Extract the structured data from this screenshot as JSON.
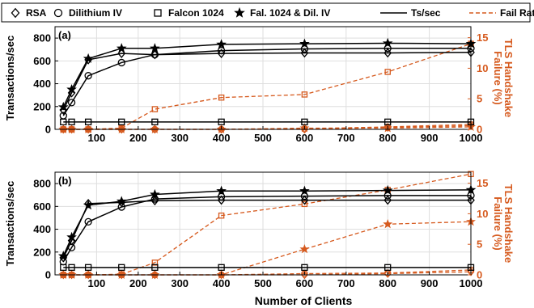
{
  "legend": {
    "entries": [
      {
        "label": "RSA",
        "marker": "diamond"
      },
      {
        "label": "Dilithium IV",
        "marker": "circle"
      },
      {
        "label": "Falcon 1024",
        "marker": "square"
      },
      {
        "label": "Fal. 1024 & Dil. IV",
        "marker": "star"
      },
      {
        "label": "Ts/sec",
        "line": "solid"
      },
      {
        "label": "Fail Rate",
        "line": "dashed"
      }
    ]
  },
  "colors": {
    "throughput": "#000000",
    "failure": "#d65a1e"
  },
  "chart_data": [
    {
      "type": "line",
      "panel_label": "(a)",
      "xlabel": "Number of Clients",
      "ylabel": "Transactions/sec",
      "ylabel_right": "TLS Handshake Failure (%)",
      "x": [
        20,
        40,
        80,
        160,
        240,
        400,
        600,
        800,
        1000
      ],
      "xlim": [
        0,
        1000
      ],
      "xticks": [
        100,
        200,
        300,
        400,
        500,
        600,
        700,
        800,
        900,
        1000
      ],
      "ylim": [
        0,
        900
      ],
      "yticks": [
        0,
        200,
        400,
        600,
        800
      ],
      "ylim_right": [
        0,
        16.8
      ],
      "yticks_right": [
        0,
        5,
        10,
        15
      ],
      "grid": true,
      "legend_position": "top",
      "series": [
        {
          "name": "RSA",
          "marker": "diamond",
          "axis": "left",
          "values": [
            170,
            320,
            610,
            665,
            655,
            665,
            670,
            670,
            675
          ]
        },
        {
          "name": "Dilithium IV",
          "marker": "circle",
          "axis": "left",
          "values": [
            120,
            235,
            470,
            585,
            655,
            690,
            705,
            710,
            710
          ]
        },
        {
          "name": "Falcon 1024",
          "marker": "square",
          "axis": "left",
          "values": [
            65,
            65,
            65,
            65,
            65,
            65,
            65,
            65,
            65
          ]
        },
        {
          "name": "Fal. 1024 & Dil. IV",
          "marker": "star",
          "axis": "left",
          "values": [
            195,
            350,
            620,
            710,
            710,
            745,
            750,
            755,
            750
          ]
        },
        {
          "name": "RSA",
          "marker": "diamond",
          "axis": "right",
          "values": [
            0,
            0,
            0,
            0,
            0,
            0,
            0,
            0.3,
            0.6
          ]
        },
        {
          "name": "Dilithium IV",
          "marker": "circle",
          "axis": "right",
          "values": [
            0,
            0,
            0,
            0,
            0,
            0,
            0.1,
            0.4,
            0.8
          ]
        },
        {
          "name": "Falcon 1024",
          "marker": "square",
          "axis": "right",
          "values": [
            0,
            0,
            0,
            0.2,
            3.3,
            5.2,
            5.7,
            9.4,
            14.0
          ]
        },
        {
          "name": "Fal. 1024 & Dil. IV",
          "marker": "star",
          "axis": "right",
          "values": [
            0,
            0,
            0,
            0,
            0,
            0,
            0.2,
            0.2,
            0.4
          ]
        }
      ]
    },
    {
      "type": "line",
      "panel_label": "(b)",
      "xlabel": "Number of Clients",
      "ylabel": "Transactions/sec",
      "ylabel_right": "TLS Handshake Failure (%)",
      "x": [
        20,
        40,
        80,
        160,
        240,
        400,
        600,
        800,
        1000
      ],
      "xlim": [
        0,
        1000
      ],
      "xticks": [
        100,
        200,
        300,
        400,
        500,
        600,
        700,
        800,
        900,
        1000
      ],
      "ylim": [
        0,
        900
      ],
      "yticks": [
        0,
        200,
        400,
        600,
        800
      ],
      "ylim_right": [
        0,
        16.8
      ],
      "yticks_right": [
        0,
        5,
        10,
        15
      ],
      "grid": true,
      "series": [
        {
          "name": "RSA",
          "marker": "diamond",
          "axis": "left",
          "values": [
            150,
            300,
            625,
            635,
            650,
            655,
            655,
            655,
            655
          ]
        },
        {
          "name": "Dilithium IV",
          "marker": "circle",
          "axis": "left",
          "values": [
            115,
            240,
            465,
            595,
            665,
            685,
            690,
            695,
            695
          ]
        },
        {
          "name": "Falcon 1024",
          "marker": "square",
          "axis": "left",
          "values": [
            65,
            65,
            65,
            65,
            65,
            65,
            65,
            65,
            65
          ]
        },
        {
          "name": "Fal. 1024 & Dil. IV",
          "marker": "star",
          "axis": "left",
          "values": [
            165,
            330,
            610,
            645,
            705,
            735,
            735,
            740,
            745
          ]
        },
        {
          "name": "RSA",
          "marker": "diamond",
          "axis": "right",
          "values": [
            0,
            0,
            0,
            0,
            0,
            0,
            0,
            0.2,
            0.5
          ]
        },
        {
          "name": "Dilithium IV",
          "marker": "circle",
          "axis": "right",
          "values": [
            0,
            0,
            0,
            0,
            0,
            0,
            0.2,
            0.3,
            0.8
          ]
        },
        {
          "name": "Falcon 1024",
          "marker": "square",
          "axis": "right",
          "values": [
            0,
            0,
            0,
            0.1,
            2.0,
            9.7,
            11.6,
            13.9,
            16.5
          ]
        },
        {
          "name": "Fal. 1024 & Dil. IV",
          "marker": "star",
          "axis": "right",
          "values": [
            0,
            0,
            0,
            0,
            0,
            0,
            4.2,
            8.3,
            8.7
          ]
        }
      ]
    }
  ]
}
